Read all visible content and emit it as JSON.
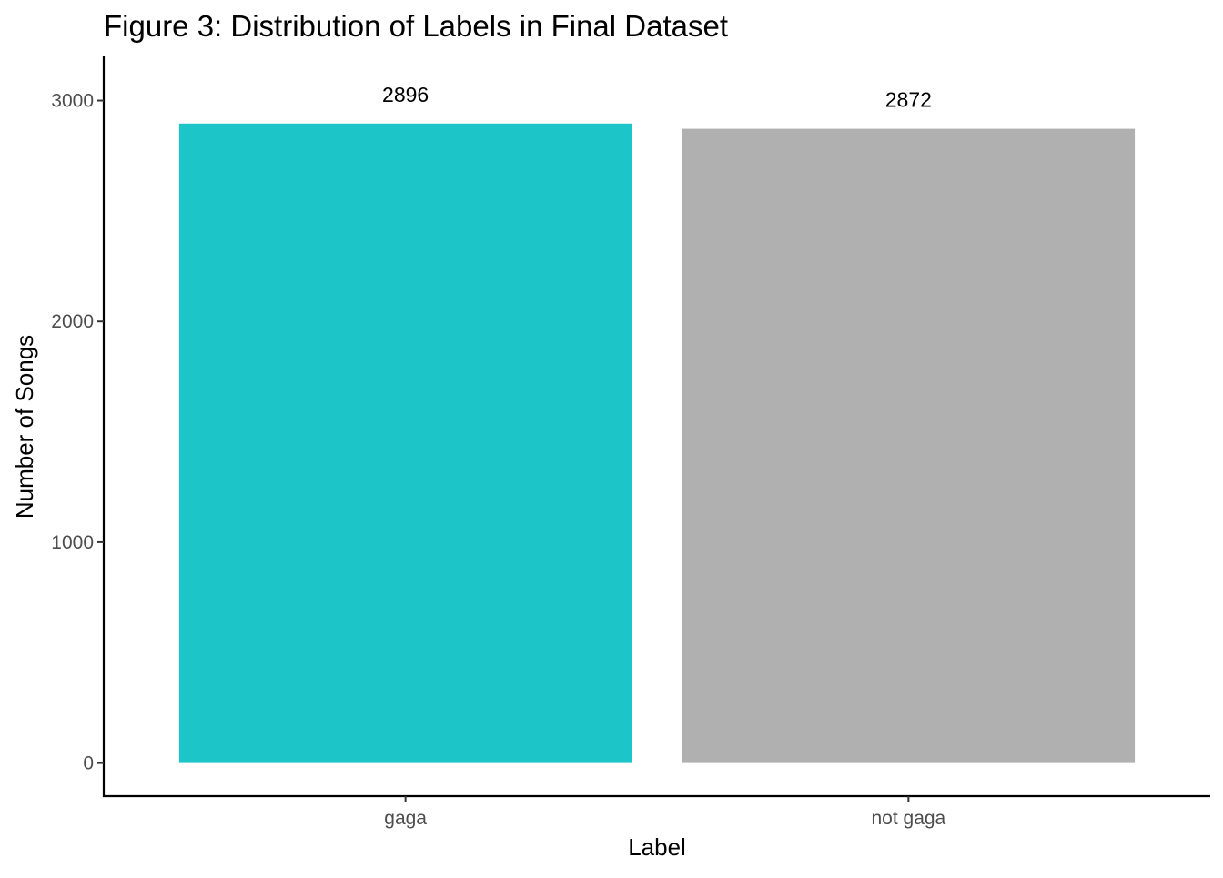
{
  "chart_data": {
    "type": "bar",
    "title": "Figure 3: Distribution of Labels in Final Dataset",
    "xlabel": "Label",
    "ylabel": "Number of Songs",
    "categories": [
      "gaga",
      "not gaga"
    ],
    "values": [
      2896,
      2872
    ],
    "data_labels": [
      "2896",
      "2872"
    ],
    "colors": [
      "#1CC5C8",
      "#B0B0B0"
    ],
    "ylim": [
      -150,
      3200
    ],
    "yticks": [
      0,
      1000,
      2000,
      3000
    ],
    "ytick_labels": [
      "0",
      "1000",
      "2000",
      "3000"
    ],
    "grid": false,
    "legend": "none"
  }
}
